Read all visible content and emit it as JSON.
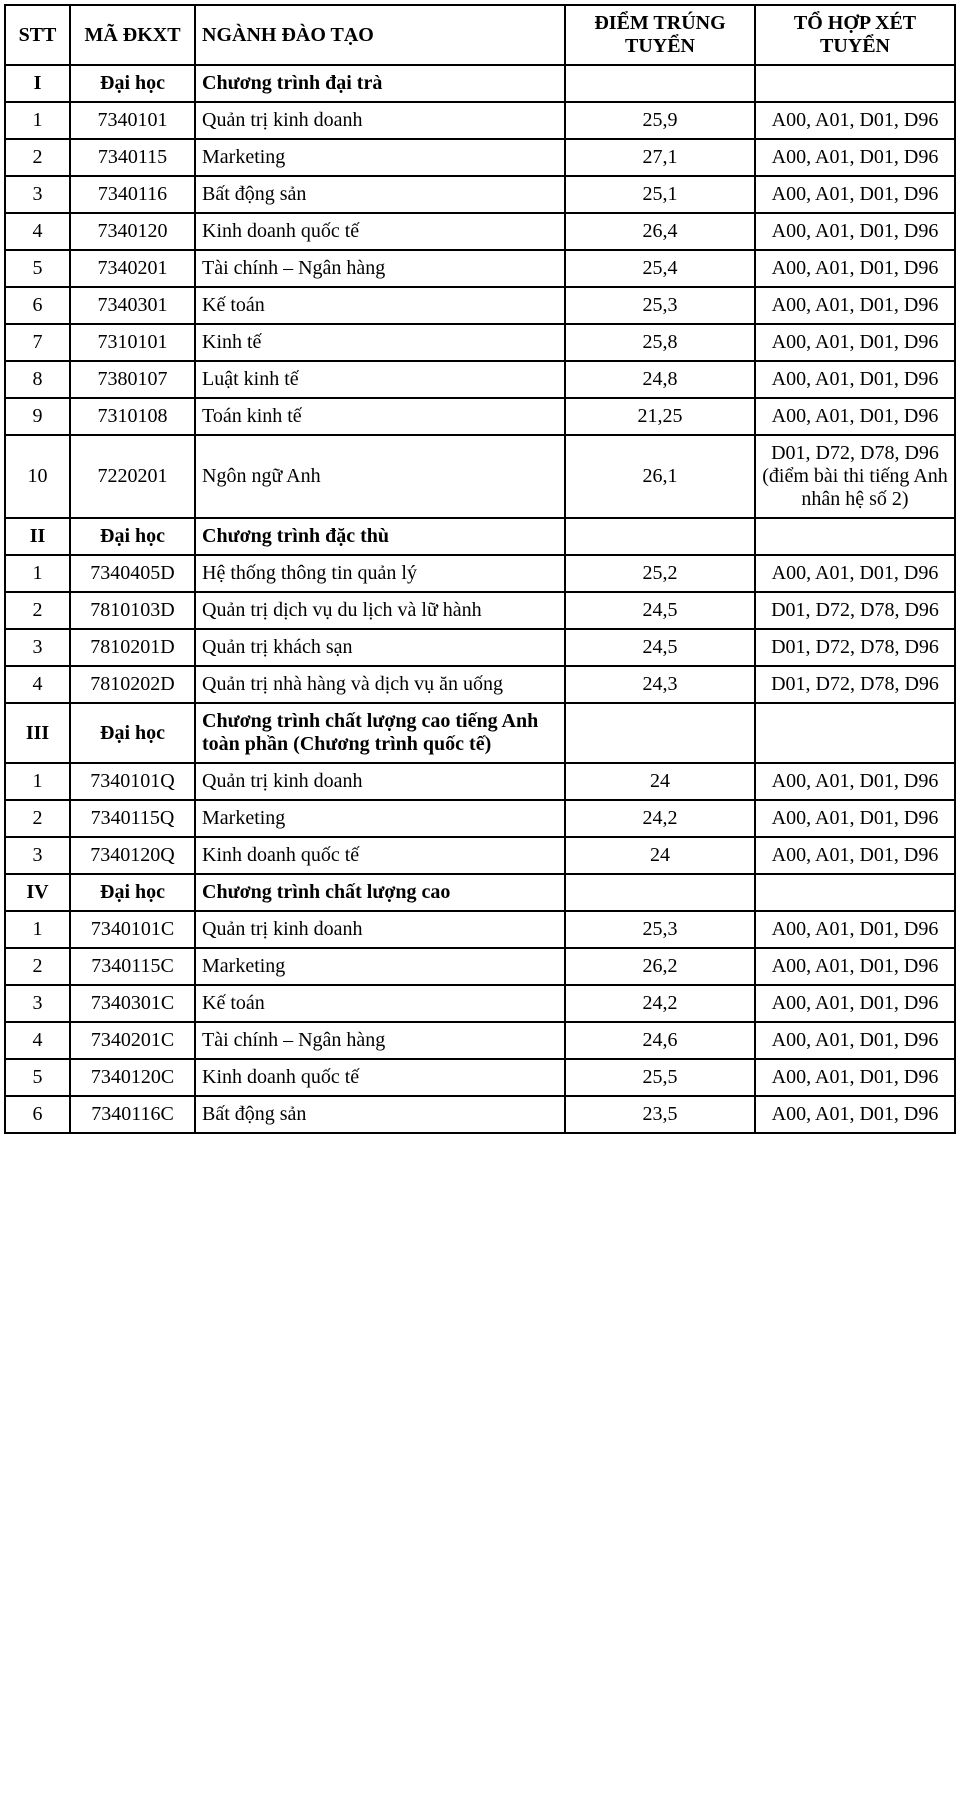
{
  "table": {
    "columns": [
      {
        "key": "stt",
        "label": "STT",
        "class": "col-stt"
      },
      {
        "key": "code",
        "label": "MÃ ĐKXT",
        "class": "col-code"
      },
      {
        "key": "name",
        "label": "NGÀNH ĐÀO TẠO",
        "class": "col-name"
      },
      {
        "key": "score",
        "label": "ĐIỂM TRÚNG TUYỂN",
        "class": "col-score"
      },
      {
        "key": "combo",
        "label": "TỔ HỢP XÉT TUYỂN",
        "class": "col-combo"
      }
    ],
    "rows": [
      {
        "type": "section",
        "stt": "I",
        "code": "Đại học",
        "name": "Chương trình đại trà"
      },
      {
        "type": "data",
        "stt": "1",
        "code": "7340101",
        "name": "Quản trị kinh doanh",
        "score": "25,9",
        "combo": "A00, A01, D01, D96"
      },
      {
        "type": "data",
        "stt": "2",
        "code": "7340115",
        "name": "Marketing",
        "score": "27,1",
        "combo": "A00, A01, D01, D96"
      },
      {
        "type": "data",
        "stt": "3",
        "code": "7340116",
        "name": "Bất động sản",
        "score": "25,1",
        "combo": "A00, A01, D01, D96"
      },
      {
        "type": "data",
        "stt": "4",
        "code": "7340120",
        "name": "Kinh doanh quốc tế",
        "score": "26,4",
        "combo": "A00, A01, D01, D96"
      },
      {
        "type": "data",
        "stt": "5",
        "code": "7340201",
        "name": "Tài chính – Ngân hàng",
        "score": "25,4",
        "combo": "A00, A01, D01, D96"
      },
      {
        "type": "data",
        "stt": "6",
        "code": "7340301",
        "name": "Kế toán",
        "score": "25,3",
        "combo": "A00, A01, D01, D96"
      },
      {
        "type": "data",
        "stt": "7",
        "code": "7310101",
        "name": "Kinh tế",
        "score": "25,8",
        "combo": "A00, A01, D01, D96"
      },
      {
        "type": "data",
        "stt": "8",
        "code": "7380107",
        "name": "Luật kinh tế",
        "score": "24,8",
        "combo": "A00, A01, D01, D96"
      },
      {
        "type": "data",
        "stt": "9",
        "code": "7310108",
        "name": "Toán kinh tế",
        "score": "21,25",
        "combo": "A00, A01, D01, D96"
      },
      {
        "type": "data",
        "stt": "10",
        "code": "7220201",
        "name": "Ngôn ngữ Anh",
        "score": "26,1",
        "combo": "D01, D72, D78, D96 (điểm bài thi tiếng Anh nhân hệ số 2)"
      },
      {
        "type": "section",
        "stt": "II",
        "code": "Đại học",
        "name": "Chương trình đặc thù"
      },
      {
        "type": "data",
        "stt": "1",
        "code": "7340405D",
        "name": "Hệ thống thông tin quản lý",
        "score": "25,2",
        "combo": "A00, A01, D01, D96"
      },
      {
        "type": "data",
        "stt": "2",
        "code": "7810103D",
        "name": "Quản trị dịch vụ du lịch và lữ hành",
        "score": "24,5",
        "combo": "D01, D72, D78, D96"
      },
      {
        "type": "data",
        "stt": "3",
        "code": "7810201D",
        "name": "Quản trị khách sạn",
        "score": "24,5",
        "combo": "D01, D72, D78, D96"
      },
      {
        "type": "data",
        "stt": "4",
        "code": "7810202D",
        "name": "Quản trị nhà hàng và dịch vụ ăn uống",
        "score": "24,3",
        "combo": "D01, D72, D78, D96"
      },
      {
        "type": "section",
        "stt": "III",
        "code": "Đại học",
        "name": "Chương trình chất lượng cao tiếng Anh toàn phần (Chương trình quốc tế)"
      },
      {
        "type": "data",
        "stt": "1",
        "code": "7340101Q",
        "name": "Quản trị kinh doanh",
        "score": "24",
        "combo": "A00, A01, D01, D96"
      },
      {
        "type": "data",
        "stt": "2",
        "code": "7340115Q",
        "name": "Marketing",
        "score": "24,2",
        "combo": "A00, A01, D01, D96"
      },
      {
        "type": "data",
        "stt": "3",
        "code": "7340120Q",
        "name": "Kinh doanh quốc tế",
        "score": "24",
        "combo": "A00, A01, D01, D96"
      },
      {
        "type": "section",
        "stt": "IV",
        "code": "Đại học",
        "name": "Chương trình chất lượng cao"
      },
      {
        "type": "data",
        "stt": "1",
        "code": "7340101C",
        "name": "Quản trị kinh doanh",
        "score": "25,3",
        "combo": "A00, A01, D01, D96"
      },
      {
        "type": "data",
        "stt": "2",
        "code": "7340115C",
        "name": "Marketing",
        "score": "26,2",
        "combo": "A00, A01, D01, D96"
      },
      {
        "type": "data",
        "stt": "3",
        "code": "7340301C",
        "name": "Kế toán",
        "score": "24,2",
        "combo": "A00, A01, D01, D96"
      },
      {
        "type": "data",
        "stt": "4",
        "code": "7340201C",
        "name": "Tài chính – Ngân hàng",
        "score": "24,6",
        "combo": "A00, A01, D01, D96"
      },
      {
        "type": "data",
        "stt": "5",
        "code": "7340120C",
        "name": "Kinh doanh quốc tế",
        "score": "25,5",
        "combo": "A00, A01, D01, D96"
      },
      {
        "type": "data",
        "stt": "6",
        "code": "7340116C",
        "name": "Bất động sản",
        "score": "23,5",
        "combo": "A00, A01, D01, D96"
      }
    ]
  },
  "style": {
    "font_family": "Times New Roman",
    "base_fontsize_pt": 15,
    "border_color": "#000000",
    "background_color": "#ffffff",
    "text_color": "#000000"
  }
}
